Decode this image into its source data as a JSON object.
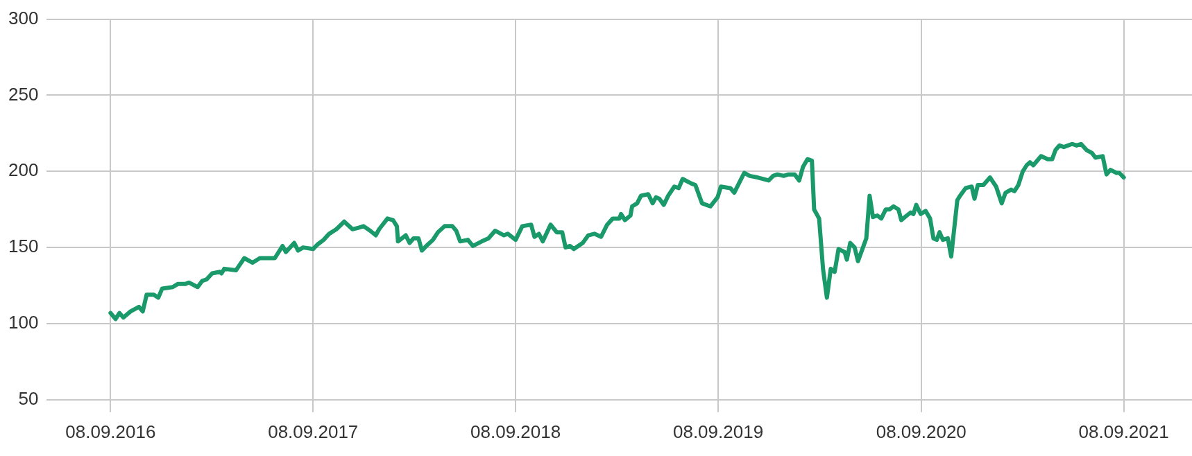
{
  "chart_data": {
    "type": "line",
    "x": [
      "2016-09-08",
      "2016-09-17",
      "2016-09-24",
      "2016-10-01",
      "2016-10-14",
      "2016-10-29",
      "2016-11-05",
      "2016-11-12",
      "2016-11-25",
      "2016-12-03",
      "2016-12-10",
      "2016-12-29",
      "2017-01-07",
      "2017-01-21",
      "2017-01-27",
      "2017-02-12",
      "2017-02-20",
      "2017-02-28",
      "2017-03-10",
      "2017-03-24",
      "2017-03-27",
      "2017-04-01",
      "2017-04-22",
      "2017-05-07",
      "2017-05-22",
      "2017-06-04",
      "2017-06-21",
      "2017-07-01",
      "2017-07-15",
      "2017-07-21",
      "2017-08-05",
      "2017-08-12",
      "2017-08-21",
      "2017-09-08",
      "2017-09-16",
      "2017-09-27",
      "2017-10-07",
      "2017-10-20",
      "2017-11-03",
      "2017-11-18",
      "2017-11-29",
      "2017-12-08",
      "2017-12-20",
      "2017-12-30",
      "2018-01-05",
      "2018-01-20",
      "2018-01-30",
      "2018-02-06",
      "2018-02-08",
      "2018-02-22",
      "2018-03-01",
      "2018-03-08",
      "2018-03-17",
      "2018-03-23",
      "2018-04-03",
      "2018-04-12",
      "2018-04-21",
      "2018-05-03",
      "2018-05-17",
      "2018-05-24",
      "2018-05-31",
      "2018-06-14",
      "2018-06-23",
      "2018-07-09",
      "2018-07-21",
      "2018-08-02",
      "2018-08-18",
      "2018-08-25",
      "2018-09-08",
      "2018-09-20",
      "2018-10-06",
      "2018-10-12",
      "2018-10-20",
      "2018-10-27",
      "2018-11-10",
      "2018-11-21",
      "2018-12-01",
      "2018-12-07",
      "2018-12-15",
      "2018-12-22",
      "2019-01-07",
      "2019-01-17",
      "2019-01-28",
      "2019-02-09",
      "2019-02-20",
      "2019-03-02",
      "2019-03-14",
      "2019-03-17",
      "2019-03-24",
      "2019-04-03",
      "2019-04-06",
      "2019-04-15",
      "2019-04-22",
      "2019-05-05",
      "2019-05-13",
      "2019-05-19",
      "2019-05-25",
      "2019-06-02",
      "2019-06-10",
      "2019-06-21",
      "2019-06-29",
      "2019-07-06",
      "2019-07-22",
      "2019-07-29",
      "2019-08-10",
      "2019-08-25",
      "2019-09-07",
      "2019-09-13",
      "2019-09-30",
      "2019-10-07",
      "2019-10-25",
      "2019-11-04",
      "2019-11-18",
      "2019-12-08",
      "2019-12-16",
      "2019-12-24",
      "2020-01-04",
      "2020-01-13",
      "2020-01-24",
      "2020-02-01",
      "2020-02-08",
      "2020-02-16",
      "2020-02-24",
      "2020-02-28",
      "2020-03-08",
      "2020-03-15",
      "2020-03-22",
      "2020-03-29",
      "2020-04-05",
      "2020-04-12",
      "2020-04-23",
      "2020-04-27",
      "2020-05-03",
      "2020-05-11",
      "2020-05-17",
      "2020-06-01",
      "2020-06-07",
      "2020-06-13",
      "2020-06-21",
      "2020-06-28",
      "2020-07-06",
      "2020-07-13",
      "2020-07-20",
      "2020-07-29",
      "2020-08-03",
      "2020-08-13",
      "2020-08-20",
      "2020-08-25",
      "2020-08-30",
      "2020-09-07",
      "2020-09-16",
      "2020-09-24",
      "2020-09-30",
      "2020-10-06",
      "2020-10-11",
      "2020-10-17",
      "2020-10-26",
      "2020-11-01",
      "2020-11-12",
      "2020-11-17",
      "2020-11-27",
      "2020-12-08",
      "2020-12-13",
      "2020-12-19",
      "2020-12-29",
      "2021-01-10",
      "2021-01-21",
      "2021-01-31",
      "2021-02-07",
      "2021-02-17",
      "2021-02-23",
      "2021-03-02",
      "2021-03-10",
      "2021-03-17",
      "2021-03-23",
      "2021-03-29",
      "2021-04-12",
      "2021-04-24",
      "2021-05-02",
      "2021-05-08",
      "2021-05-15",
      "2021-05-23",
      "2021-06-07",
      "2021-06-15",
      "2021-06-23",
      "2021-07-03",
      "2021-07-13",
      "2021-07-19",
      "2021-08-01",
      "2021-08-08",
      "2021-08-15",
      "2021-08-26",
      "2021-08-31",
      "2021-09-08"
    ],
    "values": [
      107,
      103,
      107,
      104,
      108,
      111,
      108,
      119,
      119,
      117,
      123,
      124,
      126,
      126,
      127,
      124,
      128,
      129,
      133,
      134,
      133,
      136,
      135,
      143,
      140,
      143,
      143,
      143,
      151,
      147,
      153,
      148,
      150,
      149,
      152,
      155,
      159,
      162,
      167,
      162,
      163,
      164,
      161,
      158,
      162,
      169,
      168,
      164,
      154,
      158,
      153,
      156,
      156,
      148,
      152,
      155,
      160,
      164,
      164,
      161,
      154,
      155,
      151,
      154,
      156,
      161,
      158,
      159,
      155,
      164,
      165,
      157,
      159,
      154,
      165,
      160,
      160,
      150,
      151,
      149,
      153,
      158,
      159,
      157,
      165,
      169,
      169,
      172,
      168,
      171,
      177,
      179,
      184,
      185,
      179,
      183,
      182,
      178,
      184,
      190,
      189,
      195,
      192,
      191,
      179,
      177,
      183,
      190,
      189,
      186,
      199,
      197,
      196,
      194,
      197,
      198,
      197,
      198,
      198,
      194,
      203,
      208,
      207,
      175,
      169,
      136,
      117,
      136,
      134,
      149,
      147,
      142,
      153,
      150,
      141,
      156,
      184,
      170,
      171,
      169,
      175,
      175,
      177,
      175,
      168,
      171,
      173,
      172,
      178,
      172,
      174,
      169,
      156,
      155,
      160,
      155,
      156,
      144,
      181,
      184,
      189,
      190,
      182,
      191,
      191,
      196,
      190,
      179,
      186,
      188,
      187,
      191,
      200,
      204,
      206,
      204,
      210,
      208,
      208,
      214,
      217,
      216,
      218,
      217,
      218,
      214,
      212,
      209,
      210,
      198,
      201,
      199,
      199,
      196
    ],
    "color": "#1a9a6a",
    "xlim": [
      "2016-05-16",
      "2022-01-09"
    ],
    "xticks": [
      {
        "value": "2016-09-08",
        "label": "08.09.2016"
      },
      {
        "value": "2017-09-08",
        "label": "08.09.2017"
      },
      {
        "value": "2018-09-08",
        "label": "08.09.2018"
      },
      {
        "value": "2019-09-08",
        "label": "08.09.2019"
      },
      {
        "value": "2020-09-08",
        "label": "08.09.2020"
      },
      {
        "value": "2021-09-08",
        "label": "08.09.2021"
      }
    ],
    "ylim": [
      50,
      300
    ],
    "yticks": [
      50,
      100,
      150,
      200,
      250,
      300
    ],
    "grid": true,
    "marker": "none",
    "line_style": "solid"
  }
}
